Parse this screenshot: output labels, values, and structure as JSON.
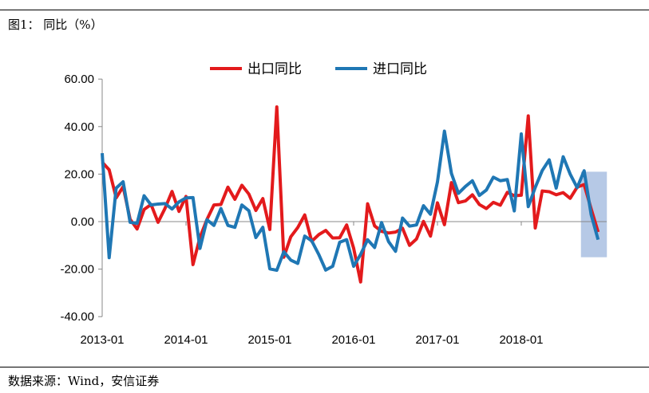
{
  "title": "图1：  同比（%）",
  "source": "数据来源：Wind，安信证券",
  "chart_data": {
    "type": "line",
    "title": "",
    "xlabel": "",
    "ylabel": "",
    "ylim": [
      -40,
      60
    ],
    "yticks": [
      "60.00",
      "40.00",
      "20.00",
      "0.00",
      "-20.00",
      "-40.00"
    ],
    "xticks": [
      "2013-01",
      "2014-01",
      "2015-01",
      "2016-01",
      "2017-01",
      "2018-01"
    ],
    "x_start": "2013-01",
    "x_end": "2018-12",
    "legend": "top",
    "highlight": {
      "from": "2018-10",
      "to": "2018-12",
      "color": "#a9c0e2"
    },
    "series": [
      {
        "name": "出口同比",
        "color": "#e31a1c",
        "values": [
          25.0,
          21.8,
          10.0,
          14.7,
          1.0,
          -3.1,
          5.1,
          7.2,
          -0.3,
          5.6,
          12.7,
          4.3,
          10.6,
          -18.1,
          -6.6,
          0.9,
          7.0,
          7.2,
          14.5,
          9.4,
          15.3,
          11.6,
          4.7,
          9.7,
          -3.3,
          48.3,
          -15.0,
          -6.4,
          -2.5,
          2.8,
          -8.3,
          -5.5,
          -3.7,
          -6.9,
          -6.8,
          -1.4,
          -11.2,
          -25.4,
          7.5,
          -1.8,
          -4.1,
          -4.8,
          -4.4,
          -2.8,
          -10.0,
          -7.3,
          0.1,
          -6.1,
          7.9,
          -1.3,
          16.4,
          8.0,
          8.7,
          11.3,
          7.2,
          5.5,
          8.1,
          6.9,
          12.3,
          10.9,
          11.1,
          44.5,
          -2.7,
          12.9,
          12.6,
          11.3,
          12.2,
          9.8,
          14.5,
          15.6,
          5.4,
          -4.4
        ]
      },
      {
        "name": "进口同比",
        "color": "#1f77b4",
        "values": [
          28.8,
          -15.2,
          14.1,
          16.8,
          -0.3,
          -0.7,
          10.9,
          7.0,
          7.4,
          7.6,
          5.3,
          8.3,
          10.0,
          10.1,
          -11.3,
          0.8,
          -1.6,
          5.5,
          -1.6,
          -2.4,
          7.0,
          4.6,
          -6.7,
          -2.4,
          -19.9,
          -20.5,
          -12.7,
          -16.2,
          -17.6,
          -6.1,
          -8.1,
          -13.8,
          -20.4,
          -18.8,
          -8.7,
          -7.6,
          -18.8,
          -13.8,
          -7.6,
          -10.9,
          -0.4,
          -8.4,
          -12.5,
          1.5,
          -1.9,
          -1.4,
          6.7,
          3.1,
          16.7,
          38.1,
          20.3,
          11.9,
          14.8,
          17.2,
          11.0,
          13.3,
          18.7,
          17.2,
          17.7,
          4.5,
          36.9,
          6.3,
          14.4,
          21.5,
          26.0,
          14.1,
          27.3,
          20.0,
          14.3,
          21.4,
          3.0,
          -7.6
        ]
      }
    ]
  }
}
